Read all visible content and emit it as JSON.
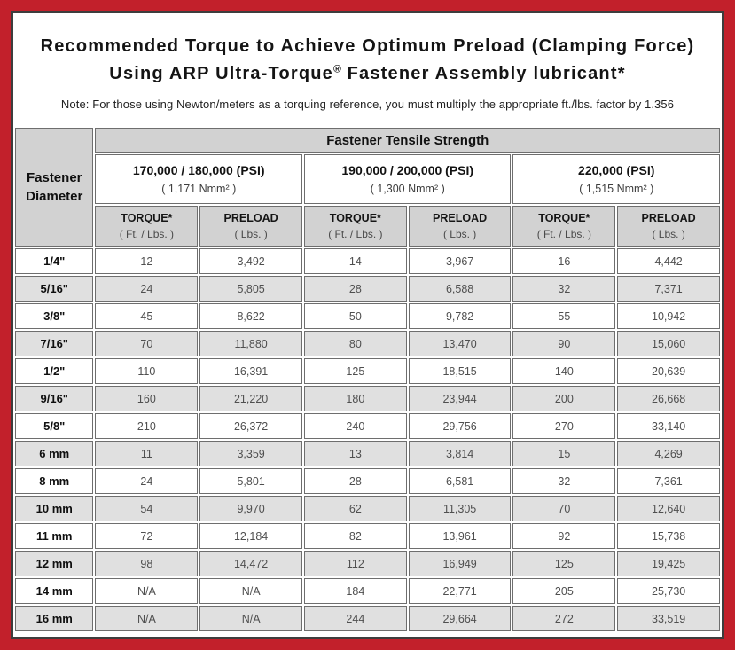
{
  "colors": {
    "frame_red": "#c2202b",
    "panel_border": "#3d3d3d",
    "header_gray": "#d2d2d2",
    "row_stripe_gray": "#e0e0e0",
    "cell_border": "#6e6e6e",
    "value_text": "#4f4f4f"
  },
  "title": {
    "line1": "Recommended Torque to Achieve Optimum Preload (Clamping Force)",
    "line2_pre": "Using ARP Ultra-Torque",
    "line2_reg_mark": "®",
    "line2_post": " Fastener Assembly lubricant*",
    "note": "Note: For those using Newton/meters as a torquing reference, you must multiply the appropriate ft./lbs. factor by 1.356"
  },
  "table": {
    "corner_header": "Fastener\nDiameter",
    "top_header": "Fastener Tensile Strength",
    "strength_groups": [
      {
        "psi": "170,000 / 180,000 (PSI)",
        "nmm": "( 1,171 Nmm² )"
      },
      {
        "psi": "190,000 / 200,000 (PSI)",
        "nmm": "( 1,300 Nmm² )"
      },
      {
        "psi": "220,000 (PSI)",
        "nmm": "( 1,515 Nmm² )"
      }
    ],
    "sub_headers": {
      "torque_label": "TORQUE*",
      "torque_unit": "( Ft. / Lbs. )",
      "preload_label": "PRELOAD",
      "preload_unit": "( Lbs. )"
    },
    "rows": [
      {
        "diameter": "1/4\"",
        "values": [
          "12",
          "3,492",
          "14",
          "3,967",
          "16",
          "4,442"
        ]
      },
      {
        "diameter": "5/16\"",
        "values": [
          "24",
          "5,805",
          "28",
          "6,588",
          "32",
          "7,371"
        ]
      },
      {
        "diameter": "3/8\"",
        "values": [
          "45",
          "8,622",
          "50",
          "9,782",
          "55",
          "10,942"
        ]
      },
      {
        "diameter": "7/16\"",
        "values": [
          "70",
          "11,880",
          "80",
          "13,470",
          "90",
          "15,060"
        ]
      },
      {
        "diameter": "1/2\"",
        "values": [
          "110",
          "16,391",
          "125",
          "18,515",
          "140",
          "20,639"
        ]
      },
      {
        "diameter": "9/16\"",
        "values": [
          "160",
          "21,220",
          "180",
          "23,944",
          "200",
          "26,668"
        ]
      },
      {
        "diameter": "5/8\"",
        "values": [
          "210",
          "26,372",
          "240",
          "29,756",
          "270",
          "33,140"
        ]
      },
      {
        "diameter": "6 mm",
        "values": [
          "11",
          "3,359",
          "13",
          "3,814",
          "15",
          "4,269"
        ]
      },
      {
        "diameter": "8 mm",
        "values": [
          "24",
          "5,801",
          "28",
          "6,581",
          "32",
          "7,361"
        ]
      },
      {
        "diameter": "10 mm",
        "values": [
          "54",
          "9,970",
          "62",
          "11,305",
          "70",
          "12,640"
        ]
      },
      {
        "diameter": "11 mm",
        "values": [
          "72",
          "12,184",
          "82",
          "13,961",
          "92",
          "15,738"
        ]
      },
      {
        "diameter": "12 mm",
        "values": [
          "98",
          "14,472",
          "112",
          "16,949",
          "125",
          "19,425"
        ]
      },
      {
        "diameter": "14 mm",
        "values": [
          "N/A",
          "N/A",
          "184",
          "22,771",
          "205",
          "25,730"
        ]
      },
      {
        "diameter": "16 mm",
        "values": [
          "N/A",
          "N/A",
          "244",
          "29,664",
          "272",
          "33,519"
        ]
      }
    ]
  }
}
